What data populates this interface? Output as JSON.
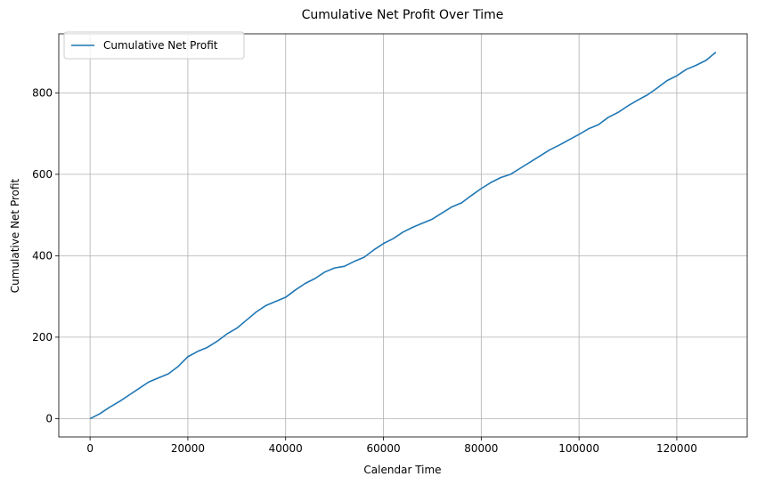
{
  "chart_data": {
    "type": "line",
    "title": "Cumulative Net Profit Over Time",
    "xlabel": "Calendar Time",
    "ylabel": "Cumulative Net Profit",
    "xlim": [
      -6400,
      134400
    ],
    "ylim": [
      -45,
      945
    ],
    "xticks": [
      0,
      20000,
      40000,
      60000,
      80000,
      100000,
      120000
    ],
    "yticks": [
      0,
      200,
      400,
      600,
      800
    ],
    "grid": true,
    "legend_position": "top-left",
    "colors": {
      "line": "#1f77b4",
      "grid": "#b0b0b0"
    },
    "series": [
      {
        "name": "Cumulative Net Profit",
        "x": [
          0,
          2000,
          4000,
          6000,
          8000,
          10000,
          12000,
          14000,
          16000,
          18000,
          20000,
          22000,
          24000,
          26000,
          28000,
          30000,
          32000,
          34000,
          36000,
          38000,
          40000,
          42000,
          44000,
          46000,
          48000,
          50000,
          52000,
          54000,
          56000,
          58000,
          60000,
          62000,
          64000,
          66000,
          68000,
          70000,
          72000,
          74000,
          76000,
          78000,
          80000,
          82000,
          84000,
          86000,
          88000,
          90000,
          92000,
          94000,
          96000,
          98000,
          100000,
          102000,
          104000,
          106000,
          108000,
          110000,
          112000,
          114000,
          116000,
          118000,
          120000,
          122000,
          124000,
          126000,
          128000
        ],
        "y": [
          0,
          12,
          28,
          42,
          58,
          74,
          90,
          100,
          110,
          128,
          152,
          165,
          175,
          190,
          208,
          222,
          242,
          262,
          278,
          288,
          298,
          316,
          332,
          344,
          360,
          370,
          374,
          386,
          396,
          414,
          430,
          442,
          458,
          470,
          480,
          490,
          505,
          520,
          530,
          548,
          565,
          580,
          592,
          600,
          615,
          630,
          645,
          660,
          672,
          685,
          698,
          712,
          722,
          740,
          752,
          768,
          782,
          795,
          812,
          830,
          842,
          858,
          868,
          880,
          900
        ]
      }
    ]
  }
}
